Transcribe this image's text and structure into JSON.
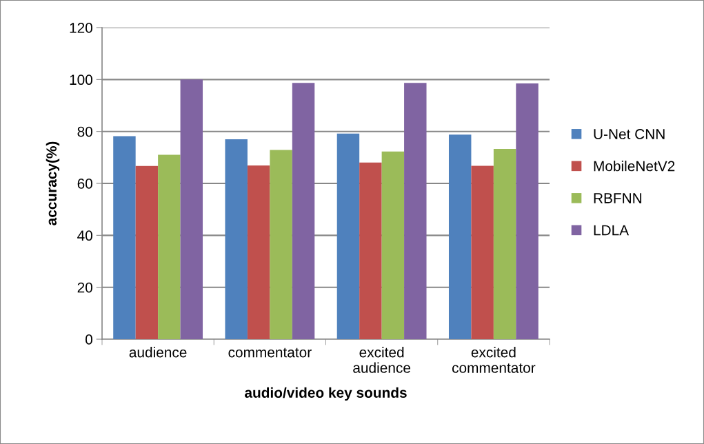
{
  "chart_data": {
    "type": "bar",
    "xlabel": "audio/video key sounds",
    "ylabel": "accuracy(%)",
    "categories": [
      "audience",
      "commentator",
      "excited audience",
      "excited commentator"
    ],
    "series": [
      {
        "name": "U-Net CNN",
        "color": "#4f81bd",
        "values": [
          78.2,
          77.0,
          79.2,
          78.8
        ]
      },
      {
        "name": "MobileNetV2",
        "color": "#c0504d",
        "values": [
          66.7,
          66.9,
          68.0,
          66.8
        ]
      },
      {
        "name": "RBFNN",
        "color": "#9bbb59",
        "values": [
          71.0,
          72.9,
          72.3,
          73.3
        ]
      },
      {
        "name": "LDLA",
        "color": "#8064a2",
        "values": [
          100,
          98.7,
          98.7,
          98.5
        ]
      }
    ],
    "ylim": [
      0,
      120
    ],
    "yticks": [
      0,
      20,
      40,
      60,
      80,
      100,
      120
    ],
    "grid": "y",
    "legend": "right"
  }
}
